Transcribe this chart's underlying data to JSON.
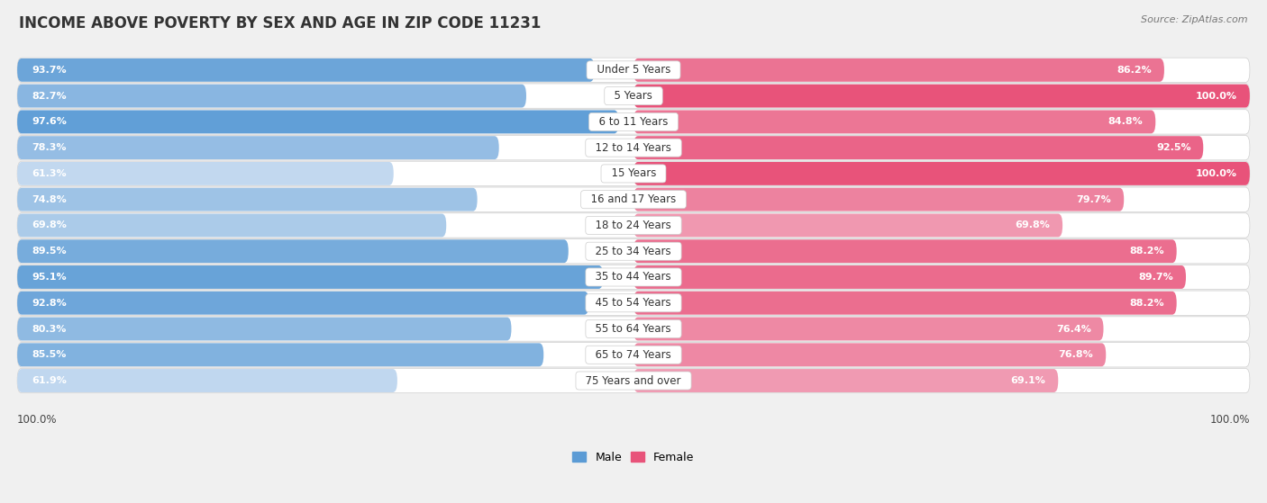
{
  "title": "INCOME ABOVE POVERTY BY SEX AND AGE IN ZIP CODE 11231",
  "source": "Source: ZipAtlas.com",
  "categories": [
    "Under 5 Years",
    "5 Years",
    "6 to 11 Years",
    "12 to 14 Years",
    "15 Years",
    "16 and 17 Years",
    "18 to 24 Years",
    "25 to 34 Years",
    "35 to 44 Years",
    "45 to 54 Years",
    "55 to 64 Years",
    "65 to 74 Years",
    "75 Years and over"
  ],
  "male_values": [
    93.7,
    82.7,
    97.6,
    78.3,
    61.3,
    74.8,
    69.8,
    89.5,
    95.1,
    92.8,
    80.3,
    85.5,
    61.9
  ],
  "female_values": [
    86.2,
    100.0,
    84.8,
    92.5,
    100.0,
    79.7,
    69.8,
    88.2,
    89.7,
    88.2,
    76.4,
    76.8,
    69.1
  ],
  "male_color_dark": "#5b9bd5",
  "male_color_light": "#c5daf0",
  "female_color_dark": "#e8537a",
  "female_color_light": "#f2afc2",
  "bg_color": "#f0f0f0",
  "bar_bg_color": "#e0e0e0",
  "row_bg_light": "#f8f8f8",
  "row_bg_dark": "#eeeeee",
  "title_fontsize": 12,
  "label_fontsize": 8.5,
  "value_fontsize": 8,
  "legend_fontsize": 9,
  "source_fontsize": 8
}
